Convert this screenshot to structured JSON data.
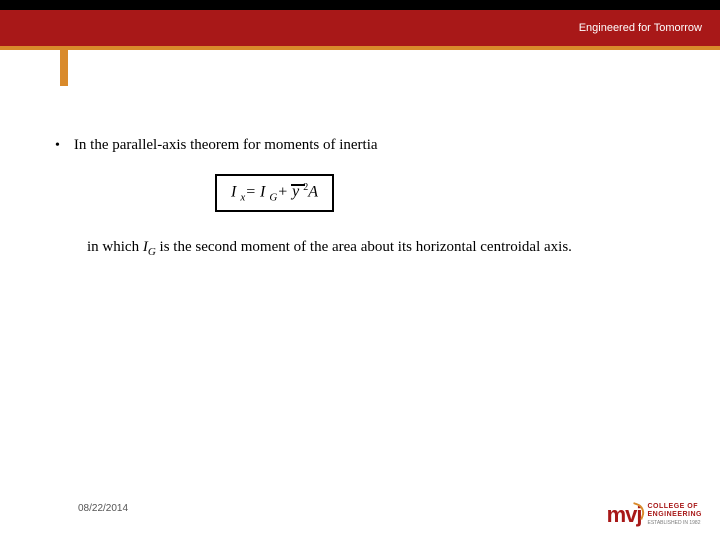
{
  "header": {
    "tagline": "Engineered for Tomorrow",
    "black_bar_color": "#000000",
    "red_band_color": "#a81818",
    "orange_accent_color": "#d98a2b"
  },
  "content": {
    "bullet_text": "In the parallel-axis theorem for moments of inertia",
    "formula": {
      "I": "I",
      "x_sub": "x",
      "eq": "= ",
      "I2": "I",
      "G_sub": "G",
      "plus": "+ ",
      "ybar": "y",
      "sq": "2",
      "A": "A"
    },
    "explanation_pre": "in which ",
    "explanation_IG_I": "I",
    "explanation_IG_G": "G",
    "explanation_post": " is the second moment of the area about its horizontal centroidal axis."
  },
  "footer": {
    "date": "08/22/2014",
    "logo_mark": "mvj",
    "logo_line1": "COLLEGE OF",
    "logo_line2": "ENGINEERING",
    "logo_line3": "Established in 1982"
  }
}
